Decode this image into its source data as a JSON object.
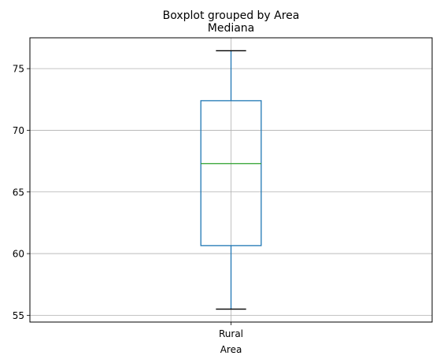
{
  "chart_data": {
    "type": "box",
    "suptitle": "Boxplot grouped by Area",
    "title": "Mediana",
    "xlabel": "Area",
    "ylabel": "",
    "categories": [
      "Rural"
    ],
    "boxes": [
      {
        "category": "Rural",
        "whisker_low": 55.5,
        "q1": 60.65,
        "median": 67.3,
        "q3": 72.4,
        "whisker_high": 76.45
      }
    ],
    "ylim": [
      54.45,
      77.5
    ],
    "yticks": [
      55,
      60,
      65,
      70,
      75
    ],
    "grid": true,
    "colors": {
      "box": "#1f77b4",
      "whisker": "#1f77b4",
      "median": "#2ca02c",
      "cap": "#000000",
      "grid": "#b0b0b0"
    }
  }
}
